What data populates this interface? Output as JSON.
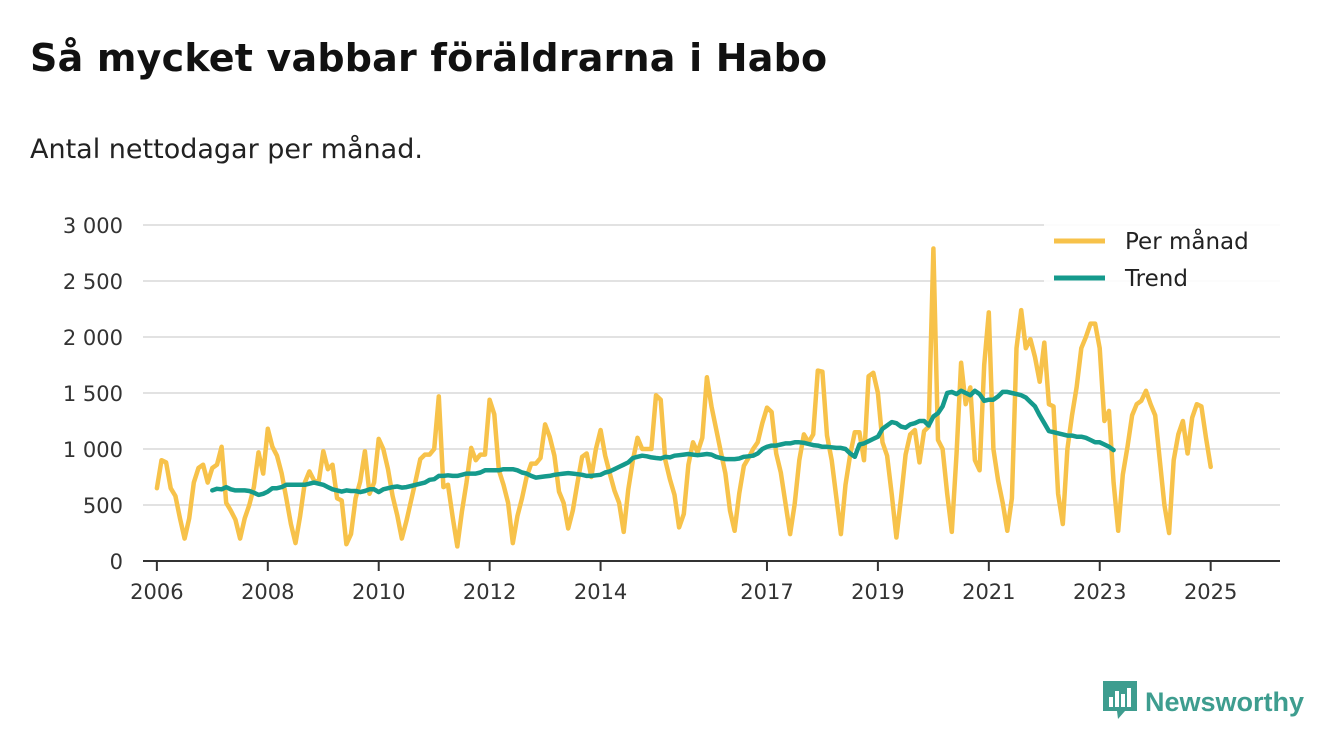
{
  "title": "Så mycket vabbar föräldrarna i Habo",
  "subtitle": "Antal nettodagar per månad.",
  "brand": {
    "name": "Newsworthy",
    "icon": "bar-chart-speech-bubble-icon",
    "color": "#3e9d8f"
  },
  "chart_data": {
    "type": "line",
    "title": "Så mycket vabbar föräldrarna i Habo",
    "subtitle": "Antal nettodagar per månad.",
    "xlabel": "",
    "ylabel": "",
    "ylim": [
      0,
      3000
    ],
    "xlim": [
      2005.75,
      2026.25
    ],
    "grid": true,
    "legend_position": "top-right",
    "y_ticks": [
      {
        "value": 0,
        "label": "0"
      },
      {
        "value": 500,
        "label": "500"
      },
      {
        "value": 1000,
        "label": "1 000"
      },
      {
        "value": 1500,
        "label": "1 500"
      },
      {
        "value": 2000,
        "label": "2 000"
      },
      {
        "value": 2500,
        "label": "2 500"
      },
      {
        "value": 3000,
        "label": "3 000"
      }
    ],
    "x_ticks": [
      {
        "value": 2006,
        "label": "2006"
      },
      {
        "value": 2008,
        "label": "2008"
      },
      {
        "value": 2010,
        "label": "2010"
      },
      {
        "value": 2012,
        "label": "2012"
      },
      {
        "value": 2014,
        "label": "2014"
      },
      {
        "value": 2017,
        "label": "2017"
      },
      {
        "value": 2019,
        "label": "2019"
      },
      {
        "value": 2021,
        "label": "2021"
      },
      {
        "value": 2023,
        "label": "2023"
      },
      {
        "value": 2025,
        "label": "2025"
      }
    ],
    "series": [
      {
        "name": "Per månad",
        "color": "#f7c24a",
        "x_start": 2006.0,
        "step": 0.083333,
        "values": [
          650,
          900,
          880,
          650,
          580,
          380,
          200,
          380,
          700,
          830,
          860,
          700,
          830,
          860,
          1020,
          520,
          450,
          370,
          200,
          380,
          500,
          660,
          970,
          780,
          1180,
          1020,
          940,
          780,
          560,
          330,
          160,
          400,
          700,
          800,
          720,
          700,
          980,
          820,
          860,
          560,
          540,
          150,
          240,
          560,
          710,
          980,
          600,
          700,
          1090,
          1000,
          820,
          580,
          410,
          200,
          360,
          540,
          720,
          910,
          950,
          950,
          1000,
          1470,
          660,
          680,
          390,
          130,
          440,
          700,
          1010,
          900,
          950,
          950,
          1440,
          1310,
          810,
          680,
          520,
          160,
          400,
          560,
          750,
          870,
          870,
          920,
          1220,
          1110,
          940,
          620,
          520,
          290,
          450,
          700,
          930,
          960,
          750,
          1000,
          1170,
          940,
          780,
          630,
          520,
          260,
          640,
          900,
          1100,
          1000,
          1000,
          1000,
          1480,
          1440,
          900,
          730,
          590,
          300,
          420,
          860,
          1060,
          970,
          1100,
          1640,
          1380,
          1180,
          980,
          780,
          450,
          270,
          600,
          850,
          920,
          1000,
          1060,
          1230,
          1370,
          1330,
          960,
          790,
          520,
          240,
          510,
          900,
          1130,
          1060,
          1130,
          1700,
          1690,
          1120,
          900,
          570,
          240,
          680,
          950,
          1150,
          1150,
          900,
          1650,
          1680,
          1500,
          1060,
          940,
          590,
          210,
          560,
          950,
          1130,
          1170,
          880,
          1160,
          1200,
          2790,
          1080,
          1000,
          600,
          260,
          950,
          1770,
          1400,
          1550,
          900,
          810,
          1750,
          2220,
          1000,
          720,
          520,
          270,
          560,
          1900,
          2240,
          1900,
          1980,
          1820,
          1600,
          1950,
          1400,
          1380,
          600,
          330,
          1000,
          1300,
          1550,
          1900,
          2000,
          2120,
          2120,
          1900,
          1250,
          1340,
          700,
          270,
          770,
          1020,
          1300,
          1400,
          1430,
          1520,
          1400,
          1300,
          900,
          500,
          250,
          900,
          1130,
          1250,
          960,
          1280,
          1400,
          1380,
          1100,
          840
        ]
      },
      {
        "name": "Trend",
        "color": "#159a8c",
        "x_start": 2007.0,
        "step": 0.083333,
        "values": [
          630,
          645,
          640,
          660,
          640,
          630,
          630,
          630,
          625,
          610,
          590,
          600,
          620,
          650,
          650,
          660,
          680,
          680,
          680,
          680,
          680,
          690,
          700,
          690,
          680,
          660,
          640,
          630,
          620,
          630,
          625,
          625,
          615,
          625,
          640,
          640,
          615,
          640,
          650,
          660,
          665,
          655,
          660,
          670,
          680,
          690,
          700,
          725,
          730,
          760,
          760,
          765,
          760,
          760,
          770,
          780,
          780,
          780,
          790,
          810,
          810,
          810,
          810,
          820,
          820,
          820,
          810,
          790,
          780,
          760,
          745,
          750,
          755,
          760,
          770,
          775,
          780,
          785,
          780,
          775,
          770,
          760,
          760,
          765,
          770,
          790,
          800,
          820,
          840,
          860,
          880,
          920,
          930,
          940,
          935,
          925,
          920,
          915,
          930,
          925,
          940,
          945,
          950,
          955,
          950,
          945,
          950,
          955,
          950,
          930,
          920,
          910,
          910,
          910,
          915,
          930,
          935,
          940,
          960,
          1000,
          1020,
          1030,
          1030,
          1040,
          1050,
          1050,
          1060,
          1060,
          1055,
          1045,
          1035,
          1030,
          1020,
          1020,
          1015,
          1010,
          1010,
          1000,
          960,
          930,
          1040,
          1050,
          1070,
          1090,
          1110,
          1180,
          1210,
          1240,
          1230,
          1200,
          1190,
          1220,
          1230,
          1250,
          1250,
          1210,
          1290,
          1320,
          1380,
          1500,
          1510,
          1490,
          1520,
          1500,
          1480,
          1520,
          1490,
          1430,
          1440,
          1440,
          1470,
          1510,
          1510,
          1500,
          1490,
          1480,
          1460,
          1420,
          1380,
          1300,
          1230,
          1160,
          1150,
          1140,
          1130,
          1120,
          1120,
          1110,
          1110,
          1100,
          1080,
          1060,
          1060,
          1040,
          1020,
          990
        ]
      }
    ]
  }
}
